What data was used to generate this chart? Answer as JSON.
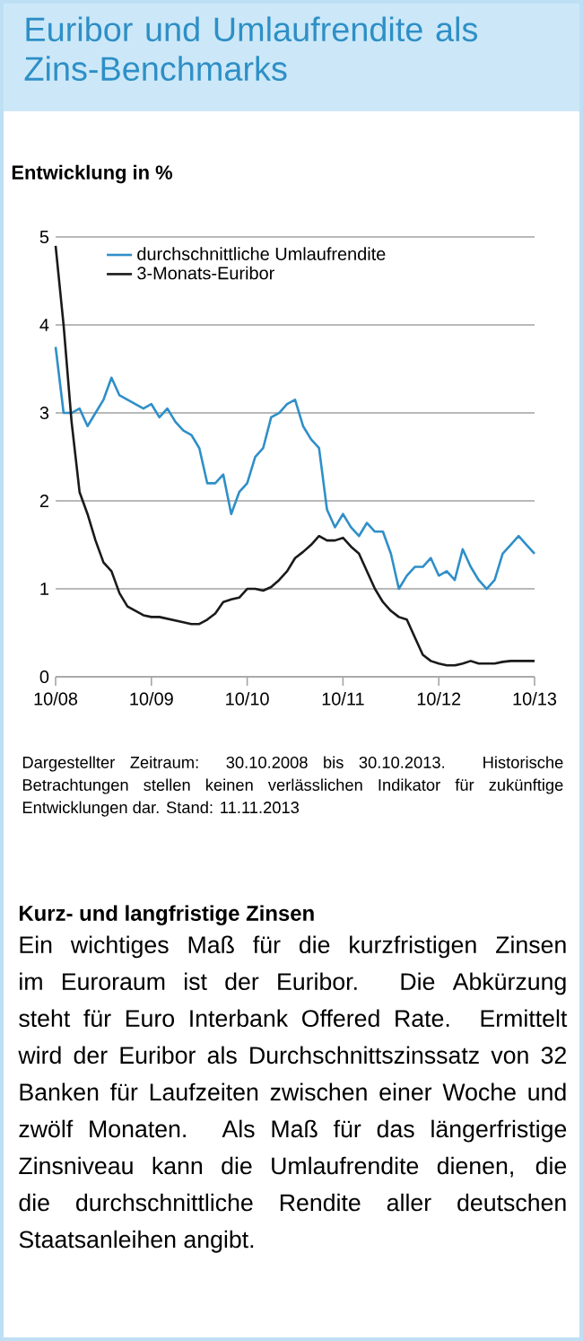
{
  "chart_data": {
    "type": "line",
    "title": "Euribor und Umlaufrendite als Zins-Benchmarks",
    "subtitle": "Entwicklung in %",
    "x": [
      "2008-10",
      "2008-11",
      "2008-12",
      "2009-01",
      "2009-02",
      "2009-03",
      "2009-04",
      "2009-05",
      "2009-06",
      "2009-07",
      "2009-08",
      "2009-09",
      "2009-10",
      "2009-11",
      "2009-12",
      "2010-01",
      "2010-02",
      "2010-03",
      "2010-04",
      "2010-05",
      "2010-06",
      "2010-07",
      "2010-08",
      "2010-09",
      "2010-10",
      "2010-11",
      "2010-12",
      "2011-01",
      "2011-02",
      "2011-03",
      "2011-04",
      "2011-05",
      "2011-06",
      "2011-07",
      "2011-08",
      "2011-09",
      "2011-10",
      "2011-11",
      "2011-12",
      "2012-01",
      "2012-02",
      "2012-03",
      "2012-04",
      "2012-05",
      "2012-06",
      "2012-07",
      "2012-08",
      "2012-09",
      "2012-10",
      "2012-11",
      "2012-12",
      "2013-01",
      "2013-02",
      "2013-03",
      "2013-04",
      "2013-05",
      "2013-06",
      "2013-07",
      "2013-08",
      "2013-09",
      "2013-10"
    ],
    "series": [
      {
        "name": "durchschnittliche Umlaufrendite",
        "color": "#2f8fc8",
        "values": [
          3.75,
          3.0,
          3.0,
          3.05,
          2.85,
          3.0,
          3.15,
          3.4,
          3.2,
          3.15,
          3.1,
          3.05,
          3.1,
          2.95,
          3.05,
          2.9,
          2.8,
          2.75,
          2.6,
          2.2,
          2.2,
          2.3,
          1.85,
          2.1,
          2.2,
          2.5,
          2.6,
          2.95,
          3.0,
          3.1,
          3.15,
          2.85,
          2.7,
          2.6,
          1.9,
          1.7,
          1.85,
          1.7,
          1.6,
          1.75,
          1.65,
          1.65,
          1.4,
          1.0,
          1.15,
          1.25,
          1.25,
          1.35,
          1.15,
          1.2,
          1.1,
          1.45,
          1.25,
          1.1,
          1.0,
          1.1,
          1.4,
          1.5,
          1.6,
          1.5,
          1.4
        ]
      },
      {
        "name": "3-Monats-Euribor",
        "color": "#1a1a1a",
        "values": [
          4.9,
          4.0,
          2.9,
          2.1,
          1.85,
          1.55,
          1.3,
          1.2,
          0.95,
          0.8,
          0.75,
          0.7,
          0.68,
          0.68,
          0.66,
          0.64,
          0.62,
          0.6,
          0.6,
          0.65,
          0.72,
          0.85,
          0.88,
          0.9,
          1.0,
          1.0,
          0.98,
          1.02,
          1.1,
          1.2,
          1.35,
          1.42,
          1.5,
          1.6,
          1.55,
          1.55,
          1.58,
          1.48,
          1.4,
          1.2,
          1.0,
          0.85,
          0.75,
          0.68,
          0.65,
          0.45,
          0.25,
          0.18,
          0.15,
          0.13,
          0.13,
          0.15,
          0.18,
          0.15,
          0.15,
          0.15,
          0.17,
          0.18,
          0.18,
          0.18,
          0.18
        ]
      }
    ],
    "xlim": [
      "2008-10",
      "2013-10"
    ],
    "xticks": [
      {
        "value": "2008-10",
        "label": "10/08"
      },
      {
        "value": "2009-10",
        "label": "10/09"
      },
      {
        "value": "2010-10",
        "label": "10/10"
      },
      {
        "value": "2011-10",
        "label": "10/11"
      },
      {
        "value": "2012-10",
        "label": "10/12"
      },
      {
        "value": "2013-10",
        "label": "10/13"
      }
    ],
    "ylim": [
      0,
      5
    ],
    "yticks": [
      0,
      1,
      2,
      3,
      4,
      5
    ],
    "grid": "y",
    "legend": "top left",
    "annotations": [
      "Dargestellter Zeitraum: 30.10.2008 bis 30.10.2013. Historische Betrachtungen stellen keinen verlässlichen Indikator für zukünftige Entwicklungen dar. Stand: 11.11.2013",
      "Kurz- und langfristige Zinsen",
      "Ein wichtiges Maß für die kurzfristigen Zinsen im Euroraum ist der Euribor. Die Abkürzung steht für Euro Interbank Offered Rate. Ermittelt wird der Euribor als Durchschnittszinssatz von 32 Banken für Laufzeiten zwischen einer Woche und zwölf Monaten. Als Maß für das längerfristige Zinsniveau kann die Umlaufrendite dienen, die die durchschnittliche Rendite aller deutschen Staatsanleihen angibt."
    ]
  }
}
